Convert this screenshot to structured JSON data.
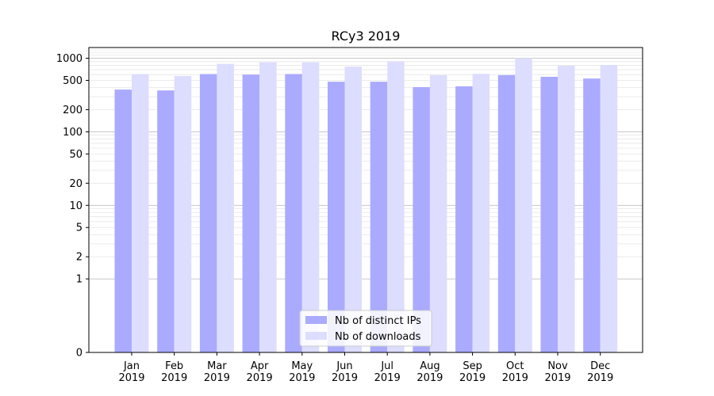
{
  "chart_data": {
    "type": "bar",
    "title": "RCy3 2019",
    "categories": [
      "Jan\n2019",
      "Feb\n2019",
      "Mar\n2019",
      "Apr\n2019",
      "May\n2019",
      "Jun\n2019",
      "Jul\n2019",
      "Aug\n2019",
      "Sep\n2019",
      "Oct\n2019",
      "Nov\n2019",
      "Dec\n2019"
    ],
    "series": [
      {
        "name": "Nb of distinct IPs",
        "color": "#aaaaff",
        "values": [
          375,
          365,
          610,
          600,
          610,
          480,
          480,
          405,
          415,
          590,
          560,
          530
        ]
      },
      {
        "name": "Nb of downloads",
        "color": "#ddddff",
        "values": [
          610,
          575,
          840,
          880,
          880,
          770,
          910,
          590,
          615,
          1000,
          790,
          810
        ]
      }
    ],
    "yscale": "symlog",
    "ylim": [
      0,
      1400
    ],
    "yticks": [
      0,
      1,
      2,
      5,
      10,
      20,
      50,
      100,
      200,
      500,
      1000
    ],
    "ytick_labels": [
      "0",
      "1",
      "2",
      "5",
      "10",
      "20",
      "50",
      "100",
      "200",
      "500",
      "1000"
    ],
    "grid": true,
    "legend_position": "lower center",
    "xlabel": "",
    "ylabel": ""
  }
}
